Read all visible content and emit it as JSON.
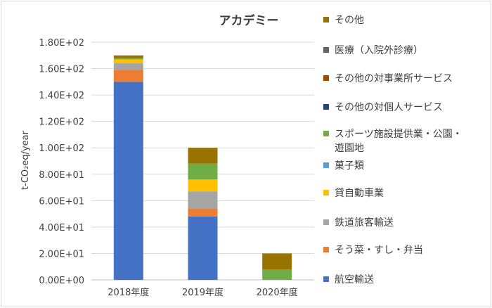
{
  "chart_data": {
    "type": "bar",
    "stacked": true,
    "title": "アカデミー",
    "xlabel": "",
    "ylabel": "t-CO₂eq/year",
    "ylim": [
      0,
      180
    ],
    "yticks": [
      0,
      20,
      40,
      60,
      80,
      100,
      120,
      140,
      160,
      180
    ],
    "ytick_labels": [
      "0.00E+00",
      "2.00E+01",
      "4.00E+01",
      "6.00E+01",
      "8.00E+01",
      "1.00E+02",
      "1.20E+02",
      "1.40E+02",
      "1.60E+02",
      "1.80E+02"
    ],
    "categories": [
      "2018年度",
      "2019年度",
      "2020年度"
    ],
    "grid": true,
    "legend_position": "right",
    "series": [
      {
        "name": "航空輸送",
        "color": "#4472C4",
        "values": [
          150,
          48,
          0
        ]
      },
      {
        "name": "そう菜・すし・弁当",
        "color": "#ED7D31",
        "values": [
          9,
          6,
          0
        ]
      },
      {
        "name": "鉄道旅客輸送",
        "color": "#A5A5A5",
        "values": [
          5,
          13,
          0
        ]
      },
      {
        "name": "貸自動車業",
        "color": "#FFC000",
        "values": [
          3,
          9,
          0
        ]
      },
      {
        "name": "菓子類",
        "color": "#5B9BD5",
        "values": [
          0,
          0,
          0
        ]
      },
      {
        "name": "スポーツ施設提供業・公園・遊園地",
        "color": "#70AD47",
        "values": [
          1,
          12,
          8
        ]
      },
      {
        "name": "その他の対個人サービス",
        "color": "#264478",
        "values": [
          0,
          0,
          0
        ]
      },
      {
        "name": "その他の対事業所サービス",
        "color": "#9E480E",
        "values": [
          0,
          0,
          0
        ]
      },
      {
        "name": "医療（入院外診療）",
        "color": "#636363",
        "values": [
          0,
          0,
          0
        ]
      },
      {
        "name": "その他",
        "color": "#997300",
        "values": [
          2,
          12,
          12
        ]
      }
    ]
  }
}
